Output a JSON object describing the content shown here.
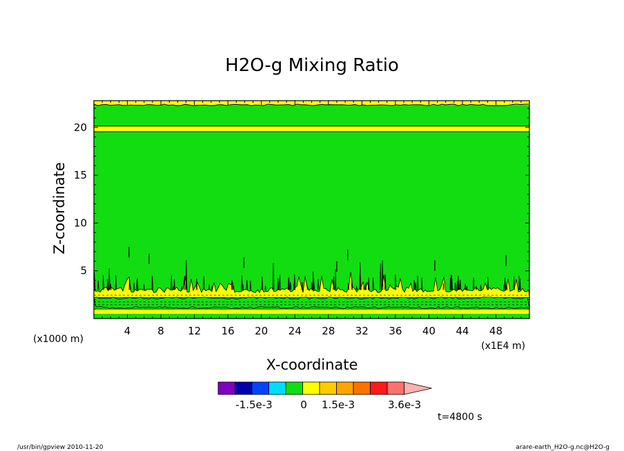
{
  "chart_data": {
    "type": "heatmap",
    "title": "H2O-g Mixing Ratio",
    "xlabel": "X-coordinate",
    "ylabel": "Z-coordinate",
    "x_unit_label": "(x1E4 m)",
    "y_unit_label": "(x1000 m)",
    "x_range": [
      0,
      52
    ],
    "y_range": [
      0,
      22.8
    ],
    "x_ticks": [
      4,
      8,
      12,
      16,
      20,
      24,
      28,
      32,
      36,
      40,
      44,
      48
    ],
    "y_ticks": [
      5,
      10,
      15,
      20
    ],
    "legend": {
      "labels": [
        "-1.5e-3",
        "0",
        "1.5e-3",
        "3.6e-3"
      ],
      "colors": [
        "#7f00bf",
        "#0000aa",
        "#0044ff",
        "#00ddff",
        "#11dd11",
        "#ffff00",
        "#ffcc00",
        "#ffa500",
        "#ff7000",
        "#ff1a1a",
        "#ff7070",
        "#ffb0b0"
      ]
    },
    "time_label": "t=4800 s",
    "colors": {
      "field": "#11dd11",
      "band": "#ffff00"
    }
  },
  "footer": {
    "left": "/usr/bin/gpview  2010-11-20",
    "right": "arare-earth_H2O-g.nc@H2O-g"
  }
}
